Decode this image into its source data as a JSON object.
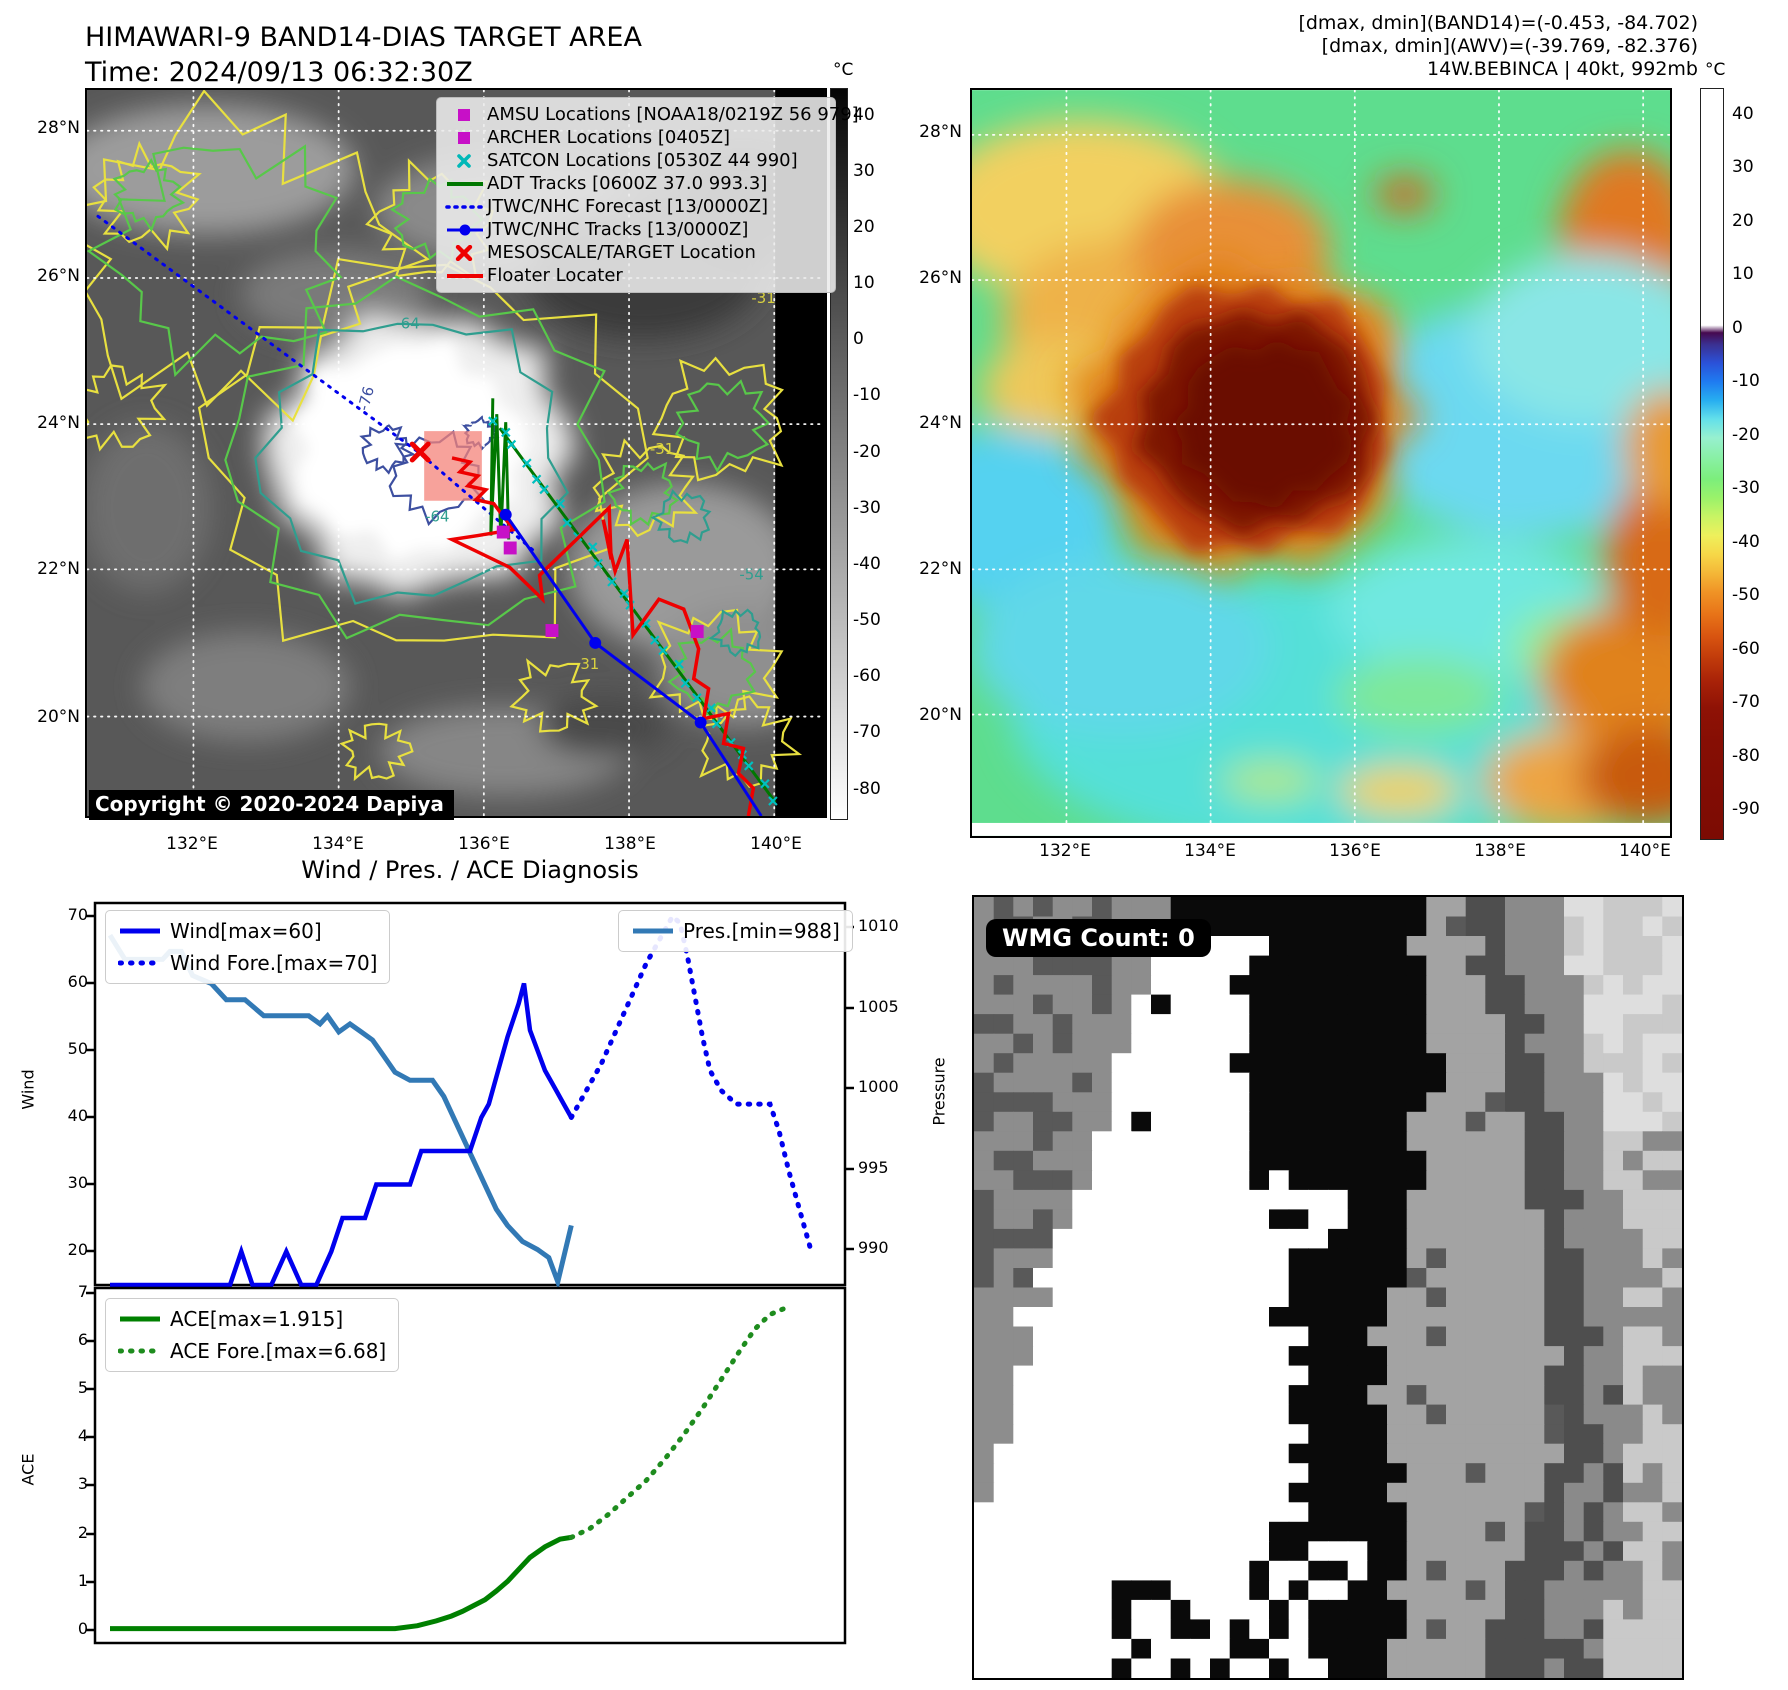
{
  "header": {
    "title": "HIMAWARI-9 BAND14-DIAS TARGET AREA",
    "time": "Time: 2024/09/13 06:32:30Z",
    "info_line1": "[dmax, dmin](BAND14)=(-0.453, -84.702)",
    "info_line2": "[dmax, dmin](AWV)=(-39.769, -82.376)",
    "info_line3": "14W.BEBINCA | 40kt, 992mb"
  },
  "band14_map": {
    "legend": [
      {
        "label": "AMSU Locations [NOAA18/0219Z 56 979]",
        "marker": "square",
        "color": "#c710c7"
      },
      {
        "label": "ARCHER Locations [0405Z]",
        "marker": "square",
        "color": "#c710c7"
      },
      {
        "label": "SATCON Locations [0530Z 44 990]",
        "marker": "x-cross",
        "color": "#00b8b8"
      },
      {
        "label": "ADT Tracks [0600Z 37.0 993.3]",
        "marker": "line",
        "color": "#007700"
      },
      {
        "label": "JTWC/NHC Forecast [13/0000Z]",
        "marker": "dotted-line",
        "color": "#0000ee"
      },
      {
        "label": "JTWC/NHC Tracks [13/0000Z]",
        "marker": "line-dot",
        "color": "#0000ee"
      },
      {
        "label": "MESOSCALE/TARGET Location",
        "marker": "X-cross",
        "color": "#ee0000"
      },
      {
        "label": "Floater Locater",
        "marker": "line",
        "color": "#ee0000"
      }
    ],
    "copyright": "Copyright © 2020-2024 Dapiya",
    "x_ticks": [
      "132°E",
      "134°E",
      "136°E",
      "138°E",
      "140°E"
    ],
    "y_ticks": [
      "28°N",
      "26°N",
      "24°N",
      "22°N",
      "20°N"
    ],
    "colorbar_unit": "°C",
    "colorbar_ticks": [
      40,
      30,
      20,
      10,
      0,
      -10,
      -20,
      -30,
      -40,
      -50,
      -60,
      -70,
      -80
    ],
    "contour_labels": [
      "-64",
      "-76",
      "-64",
      "-54",
      "-31",
      "-31",
      "31"
    ]
  },
  "awv_map": {
    "x_ticks": [
      "132°E",
      "134°E",
      "136°E",
      "138°E",
      "140°E"
    ],
    "y_ticks": [
      "28°N",
      "26°N",
      "24°N",
      "22°N",
      "20°N"
    ],
    "colorbar_unit": "°C",
    "colorbar_ticks": [
      40,
      30,
      20,
      10,
      0,
      -10,
      -20,
      -30,
      -40,
      -50,
      -60,
      -70,
      -80,
      -90
    ]
  },
  "wmg": {
    "count_label": "WMG Count: 0"
  },
  "diagnosis": {
    "title": "Wind / Pres. / ACE Diagnosis",
    "wind_ylabel": "Wind",
    "pressure_ylabel": "Pressure",
    "ace_ylabel": "ACE"
  },
  "chart_data": [
    {
      "type": "line",
      "title": "Wind / Pres. / ACE Diagnosis",
      "ylabel": "Wind",
      "y2label": "Pressure",
      "ylim": [
        15,
        72
      ],
      "y2lim": [
        987.8,
        1011.5
      ],
      "yticks": [
        70,
        60,
        50,
        40,
        30,
        20
      ],
      "y2ticks": [
        1010,
        1005,
        1000,
        995,
        990
      ],
      "grid": false,
      "legend_position": "upper left and upper right",
      "series": [
        {
          "name": "Wind[max=60]",
          "color": "#0000ee",
          "style": "solid",
          "axis": "left",
          "points": [
            [
              0.02,
              15
            ],
            [
              0.06,
              15
            ],
            [
              0.1,
              15
            ],
            [
              0.14,
              15
            ],
            [
              0.18,
              15
            ],
            [
              0.195,
              20
            ],
            [
              0.21,
              15
            ],
            [
              0.235,
              15
            ],
            [
              0.255,
              20
            ],
            [
              0.275,
              15
            ],
            [
              0.295,
              15
            ],
            [
              0.315,
              20
            ],
            [
              0.33,
              25
            ],
            [
              0.345,
              25
            ],
            [
              0.36,
              25
            ],
            [
              0.375,
              30
            ],
            [
              0.405,
              30
            ],
            [
              0.42,
              30
            ],
            [
              0.435,
              35
            ],
            [
              0.5,
              35
            ],
            [
              0.515,
              40
            ],
            [
              0.525,
              42
            ],
            [
              0.535,
              46
            ],
            [
              0.55,
              52
            ],
            [
              0.565,
              57
            ],
            [
              0.572,
              60
            ],
            [
              0.58,
              53
            ],
            [
              0.59,
              50
            ],
            [
              0.6,
              47
            ],
            [
              0.615,
              44
            ],
            [
              0.625,
              42
            ],
            [
              0.635,
              40
            ]
          ]
        },
        {
          "name": "Wind Fore.[max=70]",
          "color": "#0000ee",
          "style": "dotted",
          "axis": "left",
          "points": [
            [
              0.635,
              40
            ],
            [
              0.655,
              44
            ],
            [
              0.675,
              48
            ],
            [
              0.695,
              53
            ],
            [
              0.715,
              58
            ],
            [
              0.735,
              63
            ],
            [
              0.755,
              67
            ],
            [
              0.77,
              70
            ],
            [
              0.78,
              69
            ],
            [
              0.79,
              64
            ],
            [
              0.8,
              58
            ],
            [
              0.81,
              52
            ],
            [
              0.82,
              47
            ],
            [
              0.835,
              44
            ],
            [
              0.855,
              42
            ],
            [
              0.88,
              42
            ],
            [
              0.9,
              42
            ],
            [
              0.912,
              38
            ],
            [
              0.925,
              32
            ],
            [
              0.94,
              26
            ],
            [
              0.955,
              20
            ]
          ]
        },
        {
          "name": "Pres.[min=988]",
          "color": "#3279b5",
          "style": "solid",
          "axis": "right",
          "points": [
            [
              0.02,
              1009.5
            ],
            [
              0.04,
              1008
            ],
            [
              0.07,
              1008
            ],
            [
              0.09,
              1008
            ],
            [
              0.1,
              1008.5
            ],
            [
              0.115,
              1008.5
            ],
            [
              0.13,
              1007
            ],
            [
              0.155,
              1006.5
            ],
            [
              0.175,
              1005.5
            ],
            [
              0.2,
              1005.5
            ],
            [
              0.225,
              1004.5
            ],
            [
              0.25,
              1004.5
            ],
            [
              0.27,
              1004.5
            ],
            [
              0.285,
              1004.5
            ],
            [
              0.3,
              1004
            ],
            [
              0.31,
              1004.5
            ],
            [
              0.325,
              1003.5
            ],
            [
              0.34,
              1004
            ],
            [
              0.355,
              1003.5
            ],
            [
              0.37,
              1003
            ],
            [
              0.385,
              1002
            ],
            [
              0.4,
              1001
            ],
            [
              0.42,
              1000.5
            ],
            [
              0.45,
              1000.5
            ],
            [
              0.465,
              999.5
            ],
            [
              0.48,
              998
            ],
            [
              0.5,
              996
            ],
            [
              0.52,
              994
            ],
            [
              0.535,
              992.5
            ],
            [
              0.55,
              991.5
            ],
            [
              0.57,
              990.5
            ],
            [
              0.59,
              990
            ],
            [
              0.605,
              989.5
            ],
            [
              0.617,
              988
            ],
            [
              0.635,
              991.5
            ]
          ]
        }
      ]
    },
    {
      "type": "line",
      "ylabel": "ACE",
      "ylim": [
        -0.28,
        7.1
      ],
      "yticks": [
        7,
        6,
        5,
        4,
        3,
        2,
        1,
        0
      ],
      "grid": false,
      "legend_position": "upper left",
      "series": [
        {
          "name": "ACE[max=1.915]",
          "color": "#008000",
          "style": "solid",
          "axis": "left",
          "points": [
            [
              0.02,
              0.02
            ],
            [
              0.1,
              0.02
            ],
            [
              0.2,
              0.02
            ],
            [
              0.3,
              0.02
            ],
            [
              0.4,
              0.02
            ],
            [
              0.43,
              0.08
            ],
            [
              0.455,
              0.18
            ],
            [
              0.475,
              0.28
            ],
            [
              0.49,
              0.38
            ],
            [
              0.505,
              0.5
            ],
            [
              0.52,
              0.62
            ],
            [
              0.535,
              0.8
            ],
            [
              0.55,
              1.0
            ],
            [
              0.565,
              1.25
            ],
            [
              0.58,
              1.5
            ],
            [
              0.6,
              1.72
            ],
            [
              0.62,
              1.88
            ],
            [
              0.635,
              1.915
            ]
          ]
        },
        {
          "name": "ACE Fore.[max=6.68]",
          "color": "#1e8c1e",
          "style": "dotted",
          "axis": "left",
          "points": [
            [
              0.635,
              1.915
            ],
            [
              0.66,
              2.1
            ],
            [
              0.685,
              2.4
            ],
            [
              0.71,
              2.75
            ],
            [
              0.735,
              3.1
            ],
            [
              0.76,
              3.55
            ],
            [
              0.785,
              4.05
            ],
            [
              0.81,
              4.6
            ],
            [
              0.835,
              5.2
            ],
            [
              0.86,
              5.8
            ],
            [
              0.88,
              6.25
            ],
            [
              0.9,
              6.55
            ],
            [
              0.92,
              6.68
            ]
          ]
        }
      ]
    }
  ]
}
